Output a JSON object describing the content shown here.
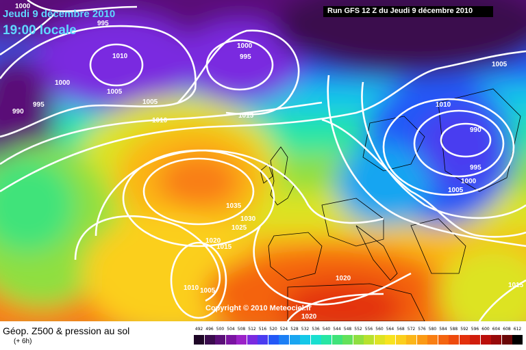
{
  "header": {
    "date_line": "Jeudi 9 décembre 2010",
    "time_line": "19:00 locale",
    "run_info": "Run GFS 12 Z du Jeudi 9 décembre 2010"
  },
  "map": {
    "credit": "Copyright © 2010 Meteociel.fr",
    "pressure_labels": [
      {
        "id": "p1",
        "value": "1000"
      },
      {
        "id": "p2",
        "value": "995"
      },
      {
        "id": "p3",
        "value": "1010"
      },
      {
        "id": "p4",
        "value": "1000"
      },
      {
        "id": "p5",
        "value": "995"
      },
      {
        "id": "p6",
        "value": "1005"
      },
      {
        "id": "p7",
        "value": "1005"
      },
      {
        "id": "p8",
        "value": "990"
      },
      {
        "id": "p9",
        "value": "1000"
      },
      {
        "id": "p10",
        "value": "995"
      },
      {
        "id": "p11",
        "value": "1005"
      },
      {
        "id": "p12",
        "value": "1010"
      },
      {
        "id": "p13",
        "value": "1015"
      },
      {
        "id": "p14",
        "value": "1010"
      },
      {
        "id": "p15",
        "value": "990"
      },
      {
        "id": "p16",
        "value": "995"
      },
      {
        "id": "p17",
        "value": "1000"
      },
      {
        "id": "p18",
        "value": "1005"
      },
      {
        "id": "p19",
        "value": "1035"
      },
      {
        "id": "p20",
        "value": "1030"
      },
      {
        "id": "p21",
        "value": "1025"
      },
      {
        "id": "p22",
        "value": "1020"
      },
      {
        "id": "p23",
        "value": "1015"
      },
      {
        "id": "p24",
        "value": "1010"
      },
      {
        "id": "p25",
        "value": "1005"
      },
      {
        "id": "p26",
        "value": "1020"
      },
      {
        "id": "p27",
        "value": "1020"
      },
      {
        "id": "p28",
        "value": "1015"
      }
    ]
  },
  "footer": {
    "title": "Géop. Z500 & pression au sol",
    "subtitle": "(+ 6h)"
  },
  "legend": {
    "values": [
      "492",
      "496",
      "500",
      "504",
      "508",
      "512",
      "516",
      "520",
      "524",
      "528",
      "532",
      "536",
      "540",
      "544",
      "548",
      "552",
      "556",
      "560",
      "564",
      "568",
      "572",
      "576",
      "580",
      "584",
      "588",
      "592",
      "596",
      "600",
      "604",
      "608",
      "612"
    ],
    "colors": [
      "#1e0626",
      "#3a0c4d",
      "#5a0f77",
      "#7a14a1",
      "#9b22c8",
      "#7a2ae0",
      "#4a3cf0",
      "#2358f7",
      "#1b7ff5",
      "#19a5f1",
      "#14c8e8",
      "#19dfd0",
      "#27e6a4",
      "#3fe37a",
      "#64e15a",
      "#8fdf40",
      "#b7e12e",
      "#dde324",
      "#f7e31f",
      "#fbcf1c",
      "#fbb618",
      "#fb9a14",
      "#f97e12",
      "#f4640f",
      "#ee4a0d",
      "#e3300c",
      "#d01d0c",
      "#bb0f0b",
      "#970a0a",
      "#6a0707",
      "#000000"
    ]
  }
}
